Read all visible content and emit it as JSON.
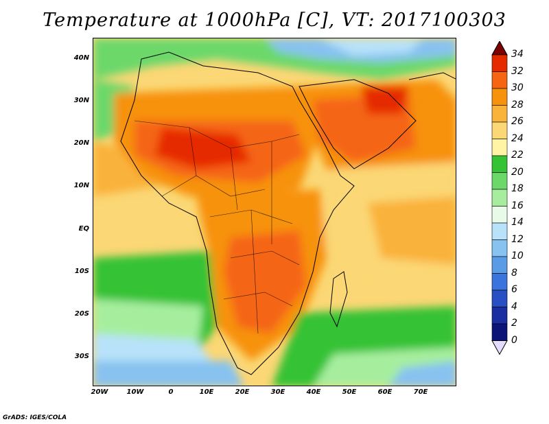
{
  "title": "Temperature at 1000hPa [C], VT: 2017100303",
  "credit": "GrADS: IGES/COLA",
  "latitude_labels": [
    "40N",
    "30N",
    "20N",
    "10N",
    "EQ",
    "10S",
    "20S",
    "30S"
  ],
  "longitude_labels": [
    "20W",
    "10W",
    "0",
    "10E",
    "20E",
    "30E",
    "40E",
    "50E",
    "60E",
    "70E"
  ],
  "colorbar": {
    "labels": [
      "34",
      "32",
      "30",
      "28",
      "26",
      "24",
      "22",
      "20",
      "18",
      "16",
      "14",
      "12",
      "10",
      "8",
      "6",
      "4",
      "2",
      "0"
    ],
    "colors": [
      "#7c0000",
      "#e62a00",
      "#f56512",
      "#f7920c",
      "#f9b23a",
      "#fbd775",
      "#fff3a6",
      "#35c234",
      "#6cd86a",
      "#a6ee9e",
      "#e8fae8",
      "#b7e2f9",
      "#87c2f0",
      "#5a9be6",
      "#3b74dc",
      "#2850c4",
      "#1a2ea2",
      "#0d1478",
      "#e6dcff"
    ]
  },
  "temperature_scale_min": 0,
  "temperature_scale_max": 34
}
